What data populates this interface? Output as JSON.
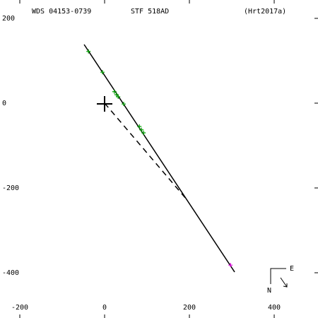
{
  "chart_data": {
    "type": "scatter",
    "header": [
      "WDS 04153-0739",
      "STF 518AD",
      "(Hrt2017a)"
    ],
    "xlim": [
      -246.7,
      503.3
    ],
    "ylim": [
      -506.7,
      243.3
    ],
    "xticks": [
      -200,
      0,
      200,
      400
    ],
    "yticks": [
      200,
      0,
      -200,
      -400
    ],
    "orbit_line": {
      "x": [
        -48.3,
        306.7
      ],
      "y": [
        138.3,
        -398.3
      ],
      "color": "#000000"
    },
    "node_line": {
      "x": [
        0,
        190
      ],
      "y": [
        0,
        -223
      ],
      "color": "#000000"
    },
    "series": [
      {
        "color": "#00a000",
        "x": [
          -38,
          -5,
          23,
          28,
          32,
          45,
          82,
          87,
          92
        ],
        "y": [
          122,
          73,
          27,
          20,
          15,
          -2,
          -55,
          -63,
          -70
        ]
      },
      {
        "color": "#e000e0",
        "x": [
          297
        ],
        "y": [
          -382
        ]
      }
    ],
    "compass": {
      "east": "E",
      "north": "N"
    }
  }
}
